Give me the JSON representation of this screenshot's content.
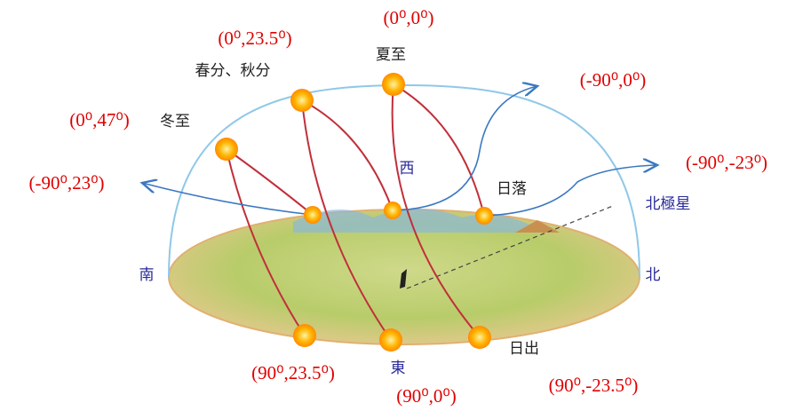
{
  "coordinates": {
    "spring_autumn": "(0⁰,23.5⁰)",
    "summer": "(0⁰,0⁰)",
    "sunset_summer": "(-90⁰,0⁰)",
    "winter": "(0⁰,47⁰)",
    "sunset_left": "(-90⁰,23⁰)",
    "sunset_right": "(-90⁰,-23⁰)",
    "sunrise_left": "(90⁰,23.5⁰)",
    "sunrise_middle": "(90⁰,0⁰)",
    "sunrise_right": "(90⁰,-23.5⁰)"
  },
  "names": {
    "spring_autumn": "春分、秋分",
    "summer": "夏至",
    "winter": "冬至",
    "sunset": "日落",
    "sunrise": "日出"
  },
  "directions": {
    "west": "西",
    "east": "東",
    "south": "南",
    "north": "北",
    "polaris": "北極星"
  }
}
